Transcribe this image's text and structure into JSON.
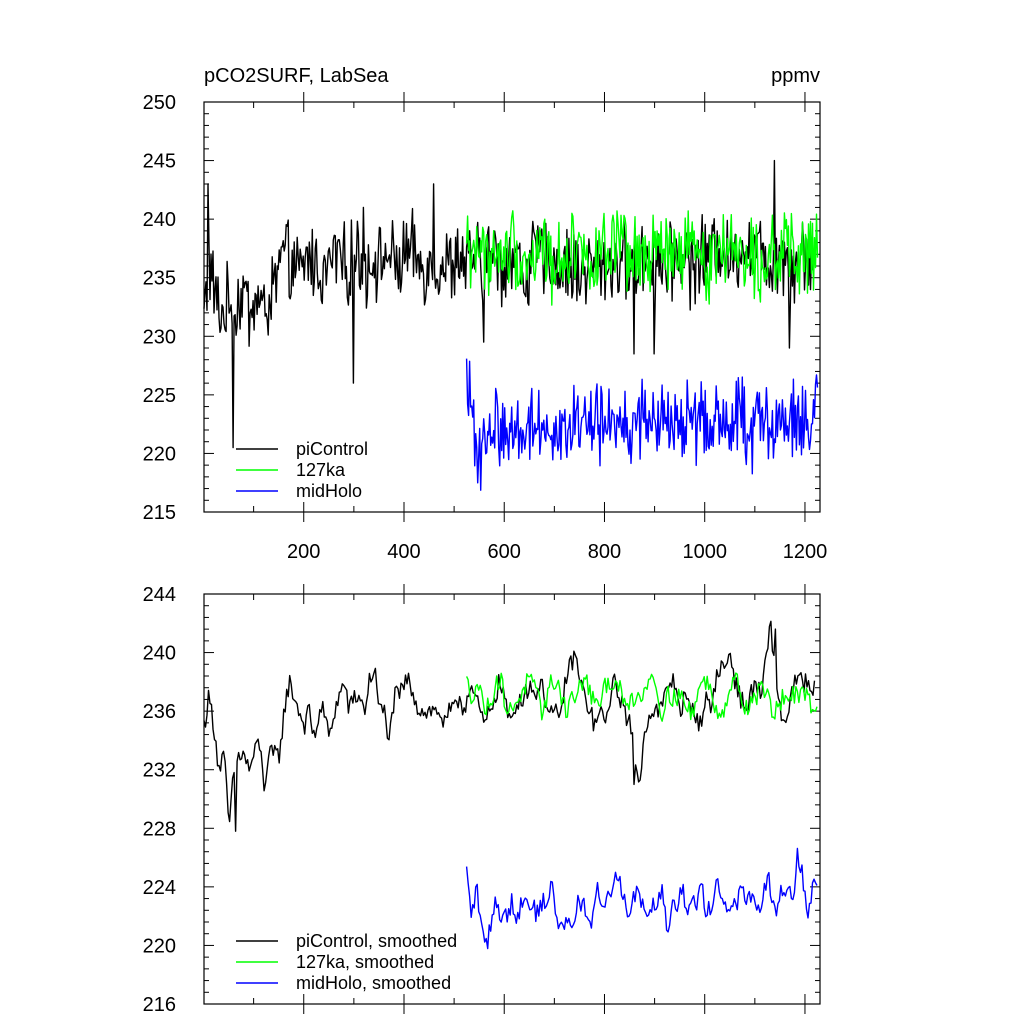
{
  "chart_data": [
    {
      "type": "line",
      "title": "pCO2SURF, LabSea",
      "units": "ppmv",
      "xlabel": "",
      "ylabel": "",
      "xlim": [
        1,
        1230
      ],
      "ylim": [
        215,
        250
      ],
      "x_ticks": [
        200,
        400,
        600,
        800,
        1000,
        1200
      ],
      "y_ticks": [
        215,
        220,
        225,
        230,
        235,
        240,
        245,
        250
      ],
      "x_tick_labels_shown": true,
      "legend_position": "bottom-left",
      "series": [
        {
          "name": "piControl",
          "color": "#000000",
          "x_start": 1,
          "x_end": 1220,
          "step": 10,
          "values": [
            232,
            236,
            234,
            232,
            232,
            233,
            232,
            233,
            234,
            232,
            233,
            233,
            232,
            233,
            234,
            236,
            237,
            236,
            236,
            235,
            236,
            237,
            236,
            236,
            235,
            236,
            237,
            237,
            236,
            236,
            237,
            237,
            236,
            236,
            237,
            236,
            237,
            237,
            236,
            236,
            237,
            237,
            237,
            236,
            236,
            236,
            236,
            236,
            236,
            236,
            236,
            237,
            236,
            236,
            237,
            236,
            236,
            237,
            237,
            236,
            236,
            237,
            237,
            236,
            235,
            236,
            237,
            237,
            236,
            237,
            236,
            236,
            236,
            236,
            236,
            235,
            236,
            236,
            236,
            236,
            236,
            236,
            236,
            237,
            236,
            236,
            236,
            236,
            237,
            237,
            236,
            237,
            236,
            236,
            237,
            237,
            237,
            236,
            236,
            237,
            237,
            237,
            238,
            238,
            237,
            236,
            237,
            238,
            238,
            237,
            238,
            237,
            237,
            236,
            237,
            237,
            237,
            236,
            236,
            237,
            237,
            236,
            237
          ],
          "spike_lows": [
            [
              60,
              220.5
            ],
            [
              300,
              226
            ],
            [
              560,
              229.5
            ],
            [
              860,
              228.5
            ],
            [
              900,
              228.5
            ],
            [
              1170,
              229
            ]
          ],
          "spike_highs": [
            [
              10,
              243
            ],
            [
              320,
              241
            ],
            [
              460,
              243
            ],
            [
              1140,
              245
            ]
          ]
        },
        {
          "name": "127ka",
          "color": "#00ff00",
          "x_start": 525,
          "x_end": 1225,
          "step": 10,
          "values": [
            238,
            237,
            238,
            237,
            237,
            237,
            236,
            237,
            237,
            238,
            237,
            237,
            236,
            237,
            237,
            238,
            237,
            236,
            236,
            237,
            237,
            238,
            238,
            237,
            237,
            237,
            236,
            237,
            237,
            237,
            238,
            237,
            237,
            236,
            237,
            237,
            236,
            237,
            237,
            238,
            237,
            237,
            236,
            237,
            238,
            237,
            237,
            237,
            236,
            237,
            237,
            238,
            238,
            237,
            237,
            238,
            237,
            237,
            237,
            236,
            237,
            238,
            237,
            237,
            237,
            237,
            236,
            237,
            237,
            237,
            237
          ]
        },
        {
          "name": "midHolo",
          "color": "#0000ff",
          "x_start": 525,
          "x_end": 1225,
          "step": 10,
          "values": [
            226,
            223,
            221,
            220,
            221,
            222,
            223,
            222,
            221,
            222,
            223,
            222,
            222,
            223,
            222,
            223,
            222,
            223,
            222,
            222,
            221,
            222,
            223,
            223,
            222,
            223,
            223,
            222,
            223,
            222,
            223,
            223,
            222,
            222,
            223,
            223,
            222,
            223,
            222,
            223,
            223,
            223,
            222,
            222,
            223,
            223,
            222,
            223,
            223,
            222,
            223,
            223,
            222,
            223,
            223,
            223,
            222,
            222,
            223,
            223,
            222,
            223,
            223,
            222,
            222,
            223,
            223,
            223,
            222,
            223,
            224
          ]
        }
      ]
    },
    {
      "type": "line",
      "title": "",
      "xlabel": "",
      "ylabel": "",
      "xlim": [
        1,
        1230
      ],
      "ylim": [
        216,
        244
      ],
      "x_ticks": [
        200,
        400,
        600,
        800,
        1000,
        1200
      ],
      "y_ticks": [
        216,
        220,
        224,
        228,
        232,
        236,
        240,
        244
      ],
      "x_tick_labels_shown": false,
      "legend_position": "bottom-left",
      "series": [
        {
          "name": "piControl, smoothed",
          "color": "#000000",
          "x_start": 1,
          "x_end": 1220,
          "step": 10,
          "values": [
            235,
            237,
            235,
            232,
            233,
            228,
            232,
            233,
            233,
            232,
            233,
            234,
            231,
            233,
            233,
            233,
            236,
            238,
            237,
            236,
            235,
            236,
            234,
            236,
            236,
            234,
            236,
            237,
            238,
            236,
            237,
            237,
            236,
            238,
            239,
            236,
            236,
            234,
            237,
            237,
            238,
            238,
            237,
            236,
            236,
            236,
            236,
            236,
            235,
            236,
            236,
            237,
            236,
            238,
            237,
            236,
            235,
            236,
            237,
            238,
            237,
            235,
            236,
            237,
            237,
            238,
            237,
            238,
            237,
            236,
            236,
            235,
            238,
            239,
            240,
            238,
            237,
            236,
            235,
            236,
            235,
            237,
            238,
            237,
            236,
            235,
            233,
            231,
            235,
            236,
            236,
            236,
            237,
            238,
            238,
            236,
            237,
            236,
            236,
            235,
            237,
            236,
            238,
            239,
            239,
            240,
            238,
            237,
            236,
            237,
            238,
            237,
            239,
            242,
            238,
            236,
            235,
            237,
            238,
            238,
            238,
            237,
            238
          ],
          "spike_lows": [
            [
              65,
              227.8
            ],
            [
              860,
              231
            ]
          ],
          "spike_highs": [
            [
              1140,
              241.6
            ]
          ]
        },
        {
          "name": "127ka, smoothed",
          "color": "#00ff00",
          "x_start": 525,
          "x_end": 1225,
          "step": 10,
          "values": [
            238,
            237,
            238,
            237,
            236,
            237,
            238,
            238,
            236,
            236,
            237,
            237,
            238,
            238,
            237,
            236,
            237,
            238,
            238,
            237,
            236,
            237,
            237,
            238,
            238,
            237,
            236,
            237,
            238,
            238,
            238,
            237,
            236,
            237,
            237,
            237,
            238,
            239,
            237,
            236,
            237,
            237,
            237,
            237,
            236,
            236,
            237,
            238,
            238,
            237,
            236,
            236,
            237,
            238,
            238,
            237,
            236,
            237,
            237,
            238,
            237,
            236,
            236,
            237,
            237,
            237,
            237,
            237,
            237,
            236,
            237
          ]
        },
        {
          "name": "midHolo, smoothed",
          "color": "#0000ff",
          "x_start": 525,
          "x_end": 1225,
          "step": 10,
          "values": [
            225,
            222,
            224,
            221,
            220,
            222,
            223,
            222,
            222,
            223,
            222,
            223,
            223,
            223,
            222,
            223,
            223,
            224,
            222,
            221,
            222,
            221,
            223,
            223,
            222,
            221,
            224,
            223,
            223,
            224,
            225,
            224,
            222,
            223,
            224,
            223,
            222,
            223,
            223,
            224,
            221,
            223,
            223,
            224,
            222,
            223,
            223,
            224,
            222,
            223,
            225,
            223,
            222,
            223,
            223,
            224,
            223,
            223,
            222,
            223,
            225,
            223,
            222,
            224,
            224,
            223,
            226,
            225,
            222,
            224,
            224
          ]
        }
      ]
    }
  ]
}
